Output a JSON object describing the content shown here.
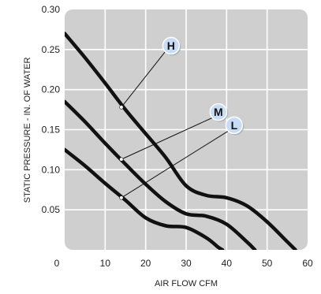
{
  "chart_data": {
    "type": "line",
    "xlabel": "AIR FLOW CFM",
    "ylabel": "STATIC PRESSURE - IN. OF WATER",
    "xlim": [
      0,
      60
    ],
    "ylim": [
      0,
      0.3
    ],
    "x_ticks": [
      "0",
      "10",
      "20",
      "30",
      "40",
      "50",
      "60"
    ],
    "y_ticks": [
      "0.05",
      "0.10",
      "0.15",
      "0.20",
      "0.25",
      "0.30"
    ],
    "grid": true,
    "colors": {
      "plot_bg": "#cfcfcf",
      "grid": "#ffffff",
      "line": "#111111",
      "marker_fill": "#c9dcf5"
    },
    "series": [
      {
        "name": "H",
        "points": [
          [
            0,
            0.27
          ],
          [
            5,
            0.24
          ],
          [
            10,
            0.208
          ],
          [
            15,
            0.175
          ],
          [
            20,
            0.145
          ],
          [
            25,
            0.115
          ],
          [
            30,
            0.08
          ],
          [
            35,
            0.068
          ],
          [
            40,
            0.065
          ],
          [
            45,
            0.055
          ],
          [
            50,
            0.035
          ],
          [
            55,
            0.01
          ],
          [
            57,
            0.0
          ]
        ],
        "label_point": [
          14,
          0.178
        ]
      },
      {
        "name": "M",
        "points": [
          [
            0,
            0.185
          ],
          [
            5,
            0.16
          ],
          [
            10,
            0.133
          ],
          [
            15,
            0.107
          ],
          [
            20,
            0.082
          ],
          [
            25,
            0.06
          ],
          [
            30,
            0.045
          ],
          [
            35,
            0.042
          ],
          [
            40,
            0.032
          ],
          [
            45,
            0.01
          ],
          [
            47,
            0.0
          ]
        ],
        "label_point": [
          14,
          0.113
        ]
      },
      {
        "name": "L",
        "points": [
          [
            0,
            0.125
          ],
          [
            5,
            0.105
          ],
          [
            10,
            0.083
          ],
          [
            15,
            0.062
          ],
          [
            20,
            0.04
          ],
          [
            25,
            0.03
          ],
          [
            30,
            0.028
          ],
          [
            35,
            0.015
          ],
          [
            38,
            0.003
          ],
          [
            39,
            0.0
          ]
        ],
        "label_point": [
          14,
          0.065
        ]
      }
    ]
  }
}
